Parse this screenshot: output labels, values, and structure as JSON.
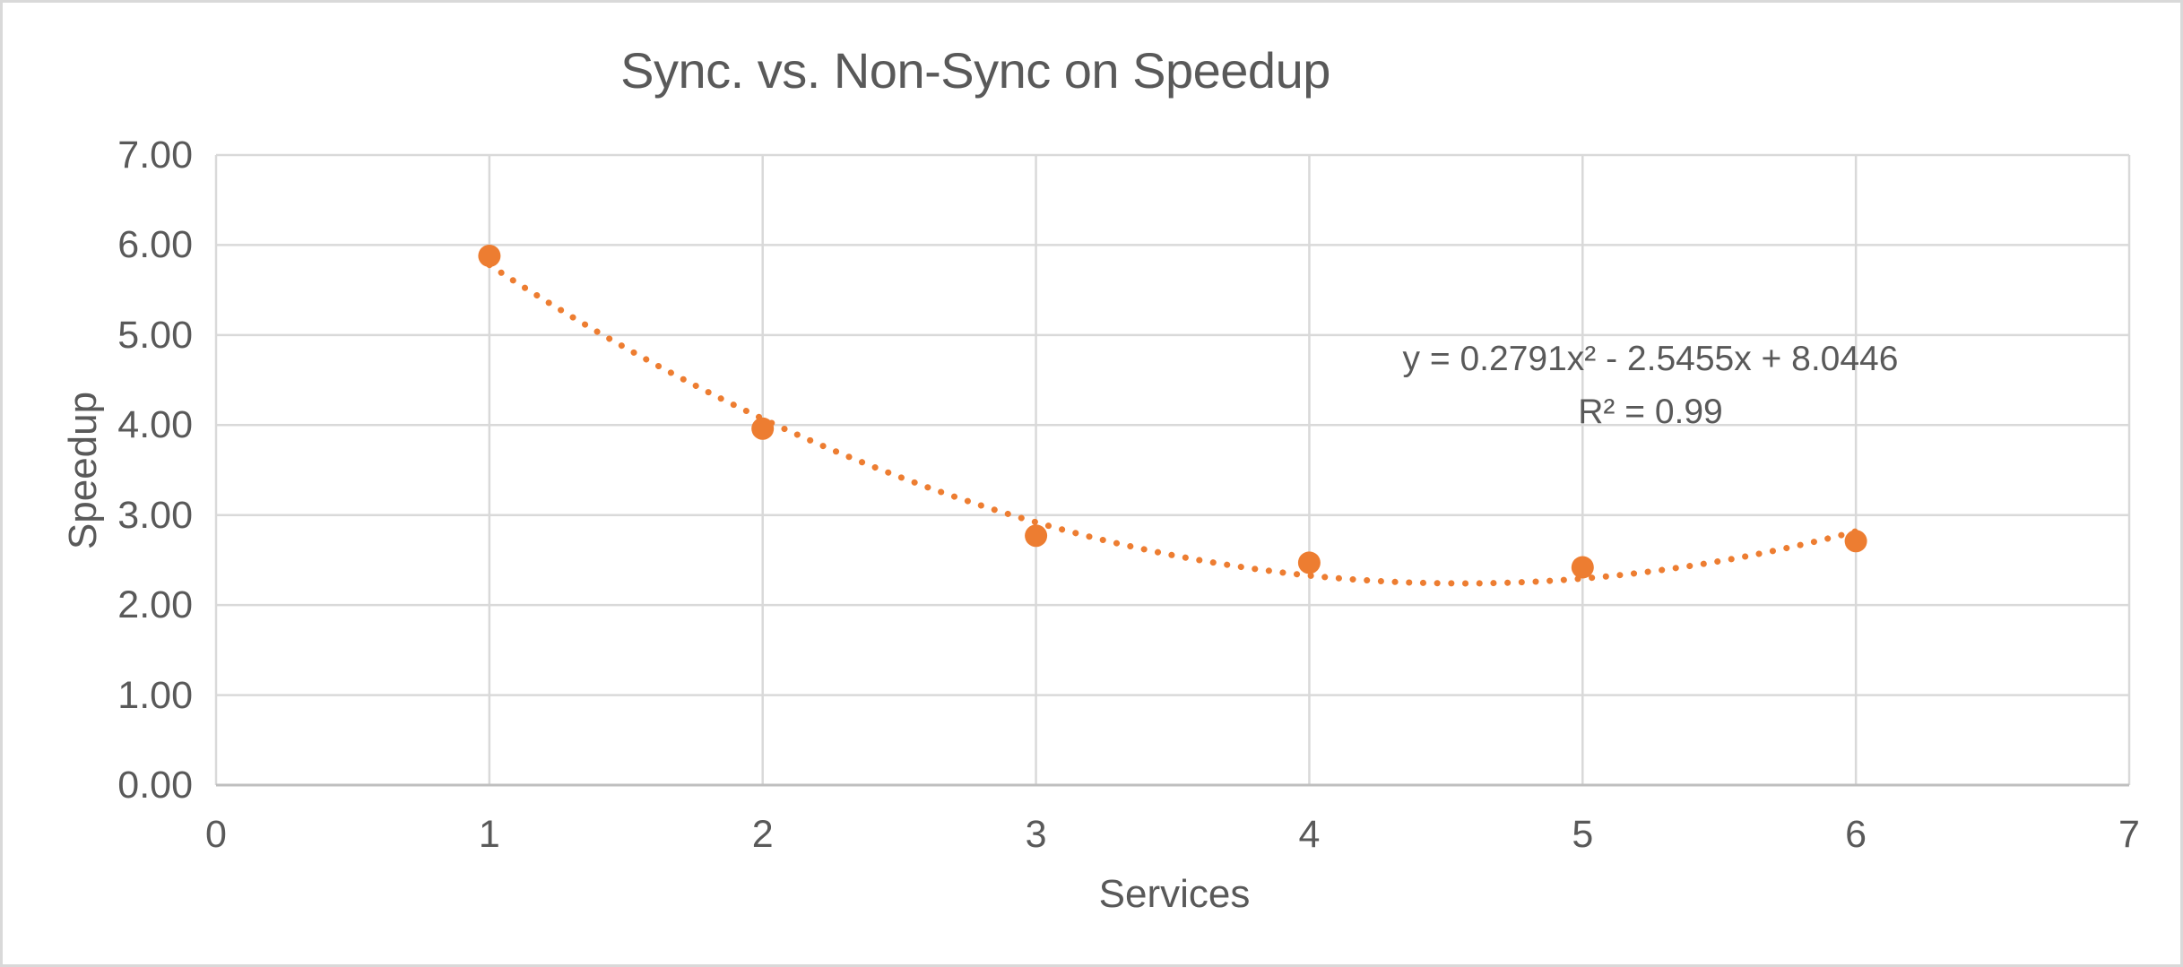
{
  "chart_data": {
    "type": "scatter",
    "title": "Sync. vs. Non-Sync on Speedup",
    "xlabel": "Services",
    "ylabel": "Speedup",
    "x": [
      1,
      2,
      3,
      4,
      5,
      6
    ],
    "y": [
      5.88,
      3.96,
      2.77,
      2.47,
      2.42,
      2.71
    ],
    "xlim": [
      0,
      7
    ],
    "ylim": [
      0,
      7
    ],
    "x_ticks": [
      "0",
      "1",
      "2",
      "3",
      "4",
      "5",
      "6",
      "7"
    ],
    "y_ticks": [
      "0.00",
      "1.00",
      "2.00",
      "3.00",
      "4.00",
      "5.00",
      "6.00",
      "7.00"
    ],
    "grid": true,
    "legend": "none",
    "trendline": {
      "type": "polynomial",
      "order": 2,
      "a": 0.2791,
      "b": -2.5455,
      "c": 8.0446,
      "x_start": 1,
      "x_end": 6,
      "style": "dotted",
      "equation_label": "y = 0.2791x² - 2.5455x + 8.0446",
      "r_squared_label": "R² = 0.99"
    },
    "colors": {
      "marker": "#ED7D31",
      "trendline": "#ED7D31",
      "gridline": "#D9D9D9",
      "axis_line": "#BFBFBF",
      "text": "#595959",
      "background": "#FFFFFF",
      "border": "#D9D9D9"
    }
  }
}
